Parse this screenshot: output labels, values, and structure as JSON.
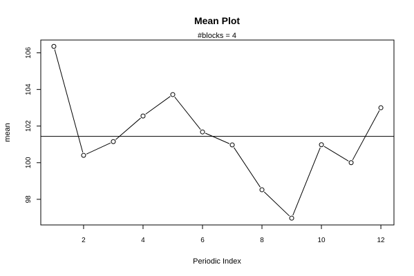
{
  "chart_data": {
    "type": "line",
    "title": "Mean Plot",
    "subtitle": "#blocks =  4",
    "xlabel": "Periodic Index",
    "ylabel": "mean",
    "x": [
      1,
      2,
      3,
      4,
      5,
      6,
      7,
      8,
      9,
      10,
      11,
      12
    ],
    "values": [
      106.35,
      100.4,
      101.15,
      102.55,
      103.72,
      101.68,
      100.97,
      98.52,
      96.97,
      100.98,
      100.0,
      103.0
    ],
    "reference_line": 101.44,
    "xticks": [
      2,
      4,
      6,
      8,
      10,
      12
    ],
    "yticks": [
      98,
      100,
      102,
      104,
      106
    ],
    "xlim": [
      0.56,
      12.44
    ],
    "ylim": [
      96.6,
      106.7
    ],
    "grid": false,
    "markers": "open-circle",
    "line_color": "#000000",
    "reference_line_color": "#000000"
  }
}
